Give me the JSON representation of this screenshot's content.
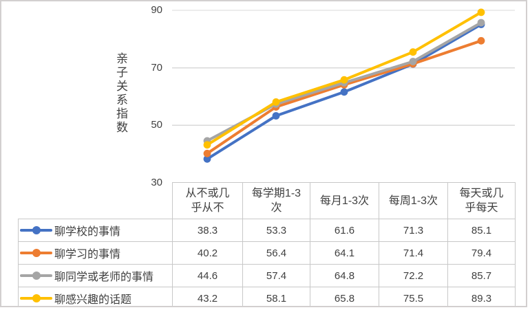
{
  "frame": {
    "background": "#FFFFFF",
    "border_color": "#D2CFCF"
  },
  "colors": {
    "gridline": "#D9D9D9",
    "table_border": "#C8C8C8",
    "text": "#3F3F3F"
  },
  "chart_data": {
    "type": "line",
    "title": "",
    "xlabel": "",
    "ylabel": "亲子关系指数",
    "ylim": [
      30,
      90
    ],
    "yticks": [
      90,
      70,
      50,
      30
    ],
    "grid": true,
    "gridlines_at": [
      90,
      70,
      50
    ],
    "marker": "circle",
    "legend_position": "table-left",
    "categories": [
      "从不或几乎从不",
      "每学期1-3次",
      "每月1-3次",
      "每周1-3次",
      "每天或几乎每天"
    ],
    "categories_wrapped": [
      "从不或几\n乎从不",
      "每学期1-3\n次",
      "每月1-3次",
      "每周1-3次",
      "每天或几\n乎每天"
    ],
    "series": [
      {
        "name": "聊学校的事情",
        "color": "#4472C4",
        "values": [
          38.3,
          53.3,
          61.6,
          71.3,
          85.1
        ]
      },
      {
        "name": "聊学习的事情",
        "color": "#ED7D31",
        "values": [
          40.2,
          56.4,
          64.1,
          71.4,
          79.4
        ]
      },
      {
        "name": "聊同学或老师的事情",
        "color": "#A5A5A5",
        "values": [
          44.6,
          57.4,
          64.8,
          72.2,
          85.7
        ]
      },
      {
        "name": "聊感兴趣的话题",
        "color": "#FFC000",
        "values": [
          43.2,
          58.1,
          65.8,
          75.5,
          89.3
        ]
      }
    ]
  }
}
